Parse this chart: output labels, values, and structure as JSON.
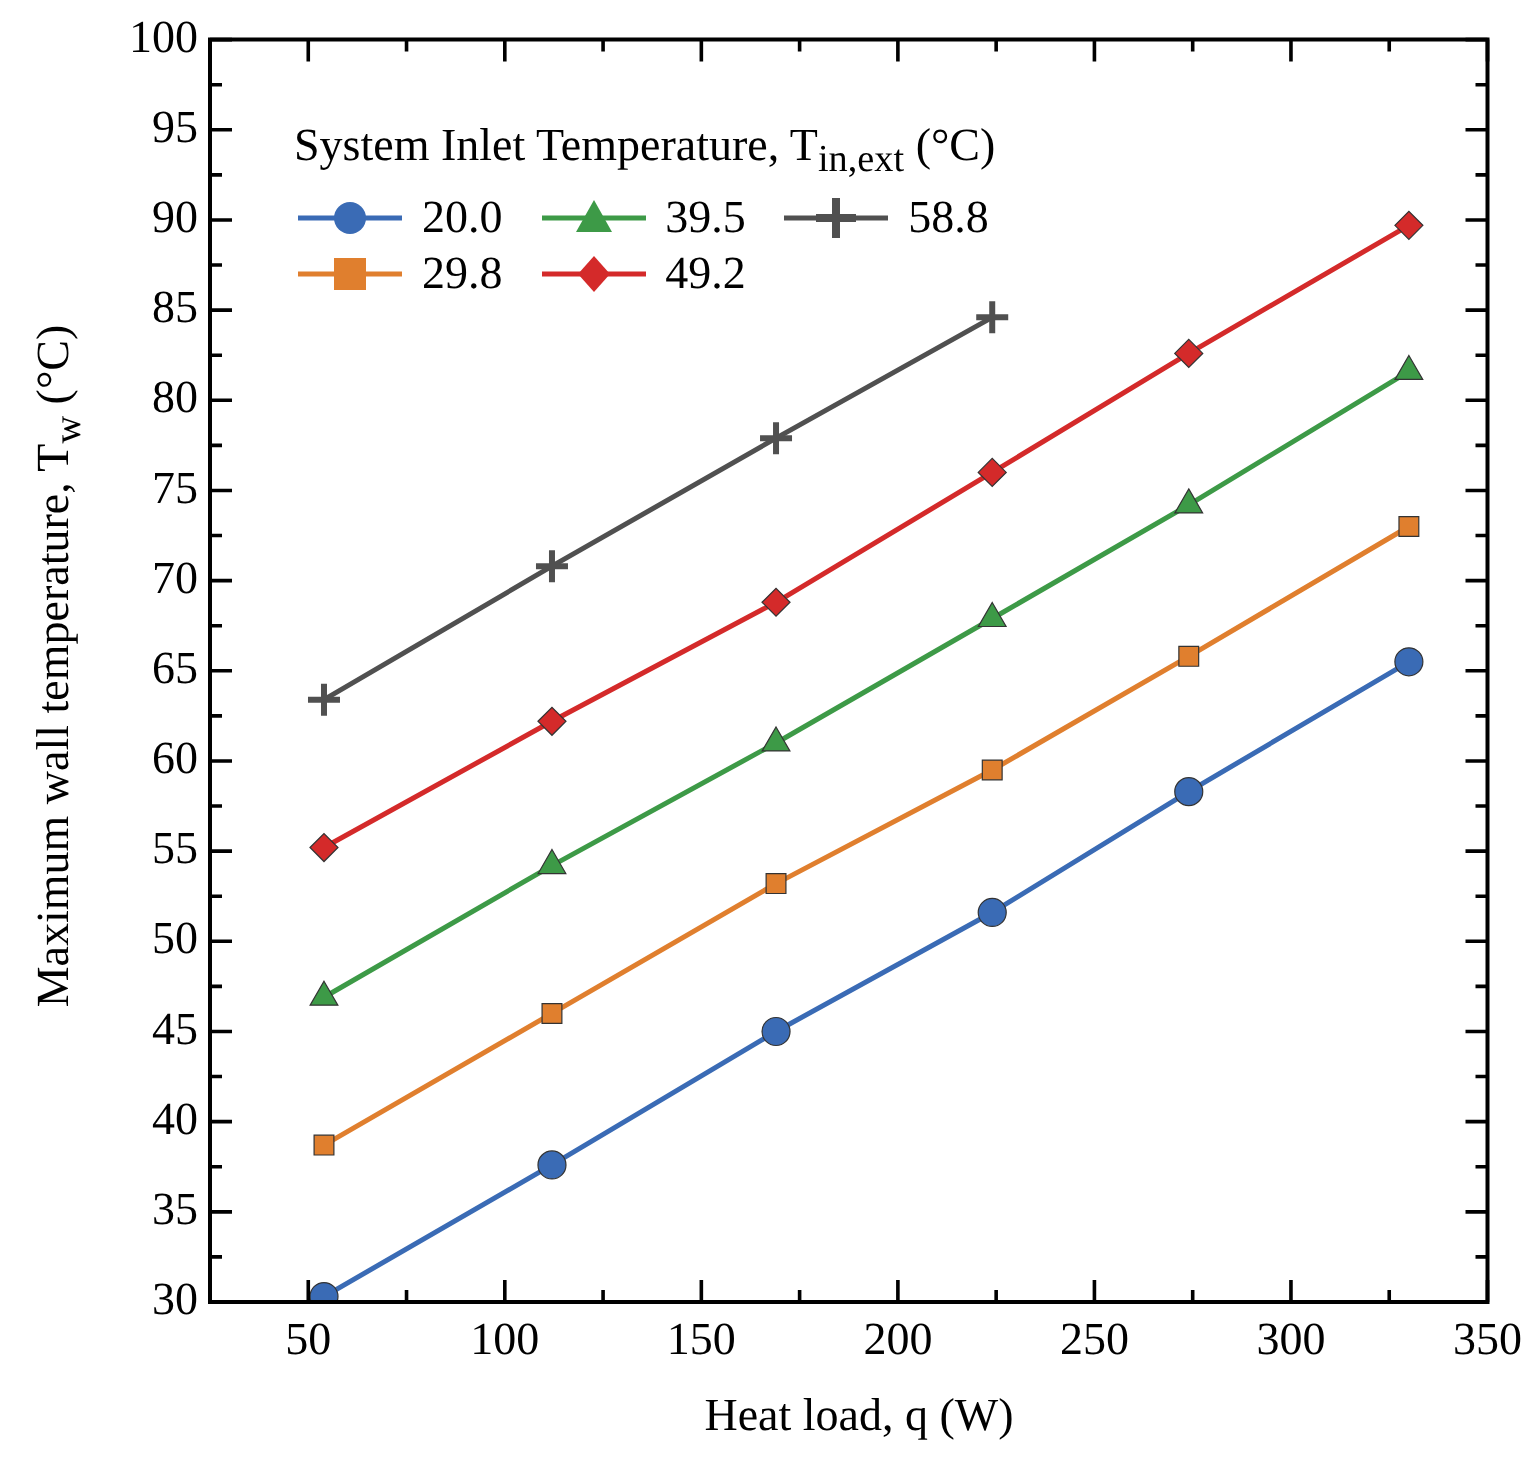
{
  "chart_data": {
    "type": "line",
    "xlabel": "Heat load, q (W)",
    "ylabel": "Maximum wall temperature, T$_{w}$ (°C)",
    "legend_title": "System Inlet Temperature, T$_{in,ext}$ (°C)",
    "legend": "top left",
    "grid": false,
    "line_style": "solid",
    "xlim": [
      25,
      350
    ],
    "xticks": [
      50,
      {
        "value": 75,
        "label": null
      },
      100,
      {
        "value": 125,
        "label": null
      },
      150,
      {
        "value": 175,
        "label": null
      },
      200,
      {
        "value": 225,
        "label": null
      },
      250,
      {
        "value": 275,
        "label": null
      },
      300,
      {
        "value": 325,
        "label": null
      },
      350
    ],
    "ylim": [
      30,
      100
    ],
    "yticks": [
      30,
      {
        "value": 32.5,
        "label": null
      },
      35,
      {
        "value": 37.5,
        "label": null
      },
      40,
      {
        "value": 42.5,
        "label": null
      },
      45,
      {
        "value": 47.5,
        "label": null
      },
      50,
      {
        "value": 52.5,
        "label": null
      },
      55,
      {
        "value": 57.5,
        "label": null
      },
      60,
      {
        "value": 62.5,
        "label": null
      },
      65,
      {
        "value": 67.5,
        "label": null
      },
      70,
      {
        "value": 72.5,
        "label": null
      },
      75,
      {
        "value": 77.5,
        "label": null
      },
      80,
      {
        "value": 82.5,
        "label": null
      },
      85,
      {
        "value": 87.5,
        "label": null
      },
      90,
      {
        "value": 92.5,
        "label": null
      },
      95,
      {
        "value": 97.5,
        "label": null
      },
      100
    ],
    "x": [
      54,
      112,
      169,
      224,
      274,
      330
    ],
    "series": [
      {
        "name": "20.0",
        "color": "#3a6bb5",
        "marker": "circle",
        "values": [
          30.3,
          37.6,
          45.0,
          51.6,
          58.3,
          65.5
        ]
      },
      {
        "name": "29.8",
        "color": "#e07f2e",
        "marker": "square",
        "values": [
          38.7,
          46.0,
          53.2,
          59.5,
          65.8,
          73.0
        ]
      },
      {
        "name": "39.5",
        "color": "#3d9a47",
        "marker": "triangle",
        "values": [
          46.9,
          54.2,
          61.0,
          67.9,
          74.2,
          81.6
        ]
      },
      {
        "name": "49.2",
        "color": "#d42a2a",
        "marker": "diamond",
        "values": [
          55.2,
          62.2,
          68.8,
          76.0,
          82.6,
          89.7
        ]
      },
      {
        "name": "58.8",
        "color": "#505050",
        "marker": "cross",
        "values": [
          63.4,
          70.8,
          77.9,
          84.6,
          null,
          null
        ]
      }
    ]
  }
}
